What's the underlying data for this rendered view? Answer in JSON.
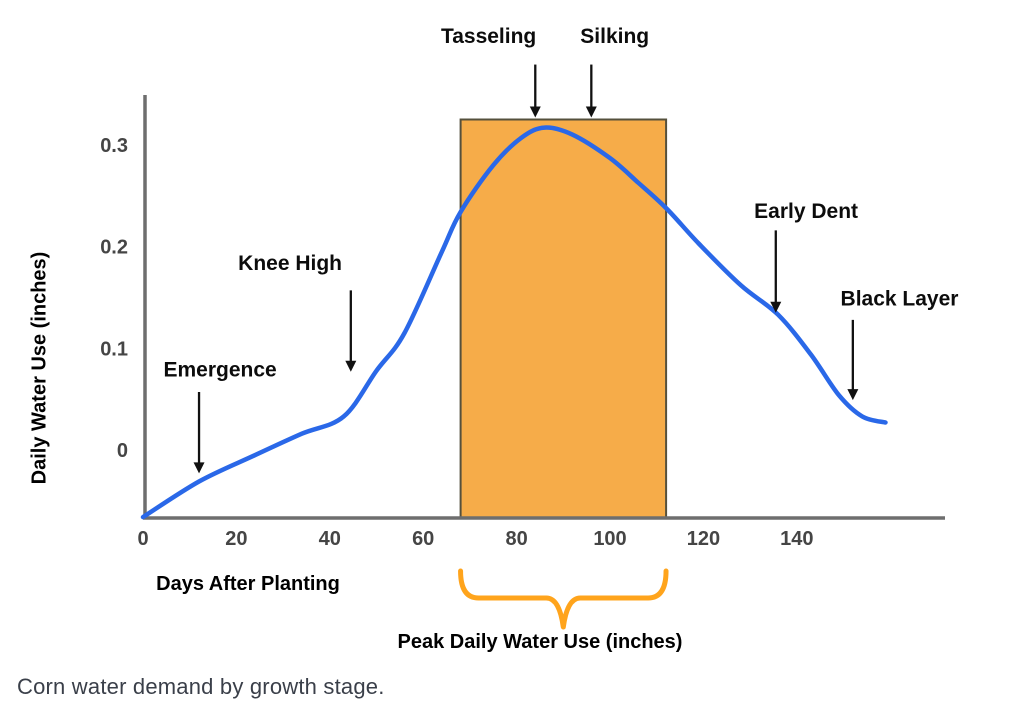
{
  "figure": {
    "caption": "Corn water demand by growth stage."
  },
  "chart_data": {
    "type": "line",
    "title": "",
    "xlabel": "Days After Planting",
    "ylabel": "Daily Water Use (inches)",
    "xlim": [
      0,
      170
    ],
    "ylim": [
      -0.07,
      0.35
    ],
    "grid": false,
    "legend": false,
    "x_ticks": [
      0,
      20,
      40,
      60,
      80,
      100,
      120,
      140
    ],
    "y_ticks": [
      {
        "value": 0,
        "label": "0"
      },
      {
        "value": 0.1,
        "label": "0.1"
      },
      {
        "value": 0.2,
        "label": "0.2"
      },
      {
        "value": 0.3,
        "label": "0.3"
      }
    ],
    "series": [
      {
        "name": "Daily water use",
        "x": [
          0,
          12,
          24,
          34,
          43,
          50,
          56,
          64,
          68,
          75,
          81,
          86,
          92,
          100,
          106,
          112,
          119,
          128,
          136,
          143,
          149,
          154,
          159
        ],
        "y": [
          -0.066,
          -0.031,
          -0.005,
          0.016,
          0.033,
          0.078,
          0.115,
          0.195,
          0.234,
          0.28,
          0.307,
          0.317,
          0.31,
          0.287,
          0.263,
          0.238,
          0.203,
          0.162,
          0.133,
          0.094,
          0.054,
          0.033,
          0.027
        ]
      }
    ],
    "shaded_region": {
      "label": "Peak Daily Water Use (inches)",
      "x_start_day": 68,
      "x_end_day": 112,
      "y_top": 0.325
    },
    "annotations": [
      {
        "label": "Emergence",
        "text_day": 16.5,
        "text_value": 0.079,
        "arrow_day": 12,
        "arrow_from": 0.057,
        "arrow_to": -0.023
      },
      {
        "label": "Knee High",
        "text_day": 31.5,
        "text_value": 0.184,
        "arrow_day": 44.5,
        "arrow_from": 0.157,
        "arrow_to": 0.077
      },
      {
        "label": "Tasseling",
        "text_day": 74,
        "text_value": 0.407,
        "arrow_day": 84,
        "arrow_from": 0.379,
        "arrow_to": 0.327
      },
      {
        "label": "Silking",
        "text_day": 101,
        "text_value": 0.407,
        "arrow_day": 96,
        "arrow_from": 0.379,
        "arrow_to": 0.327
      },
      {
        "label": "Early Dent",
        "text_day": 142,
        "text_value": 0.235,
        "arrow_day": 135.5,
        "arrow_from": 0.216,
        "arrow_to": 0.135
      },
      {
        "label": "Black Layer",
        "text_day": 162,
        "text_value": 0.149,
        "arrow_day": 152,
        "arrow_from": 0.128,
        "arrow_to": 0.049
      }
    ],
    "colors": {
      "line": "#2a68e8",
      "region_fill": "#f6ac49",
      "region_border": "#55503c",
      "axis": "#6e6e6e",
      "arrow": "#111111",
      "brace": "#ffa41c",
      "annotation_text": "#0c0c0c",
      "tick_text": "#454545",
      "caption_text": "#3a3f49"
    }
  }
}
